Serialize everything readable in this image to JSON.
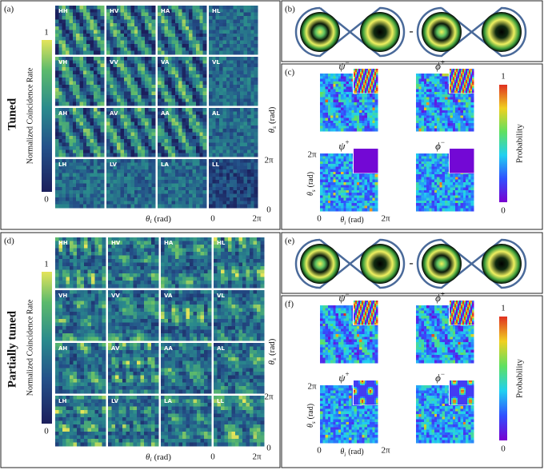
{
  "sections": [
    {
      "row_label": "Tuned",
      "coincidence": {
        "panel": "(a)",
        "colorbar_label": "Normalized Coincidence Rate",
        "colorbar_max": "1",
        "colorbar_min": "0",
        "tiles": [
          "HH",
          "HV",
          "HA",
          "HL",
          "VH",
          "VV",
          "VA",
          "VL",
          "AH",
          "AV",
          "AA",
          "AL",
          "LH",
          "LV",
          "LA",
          "LL"
        ],
        "y_axis": {
          "symbol": "θ",
          "sub": "s",
          "unit": "(rad)",
          "tick_max": "2π",
          "tick_min": "0"
        },
        "x_axis": {
          "symbol": "θ",
          "sub": "i",
          "unit": "(rad)",
          "tick_max": "2π",
          "tick_min": "0"
        }
      },
      "modes": {
        "panel": "(b)",
        "operator": "-"
      },
      "states": {
        "panel": "(c)",
        "maps": [
          {
            "symbol": "ψ",
            "sup": "−"
          },
          {
            "symbol": "ϕ",
            "sup": "+"
          },
          {
            "symbol": "ψ",
            "sup": "+"
          },
          {
            "symbol": "ϕ",
            "sup": "−"
          }
        ],
        "colorbar_label": "Probability",
        "colorbar_max": "1",
        "colorbar_min": "0",
        "y_axis": {
          "symbol": "θ",
          "sub": "s",
          "unit": "(rad)",
          "tick_max": "2π"
        },
        "x_axis": {
          "symbol": "θ",
          "sub": "i",
          "unit": "(rad)",
          "tick_max": "2π",
          "tick_min": "0"
        }
      }
    },
    {
      "row_label": "Partially tuned",
      "coincidence": {
        "panel": "(d)",
        "colorbar_label": "Normalized Coincidence Rate",
        "colorbar_max": "1",
        "colorbar_min": "0",
        "tiles": [
          "HH",
          "HV",
          "HA",
          "HL",
          "VH",
          "VV",
          "VA",
          "VL",
          "AH",
          "AV",
          "AA",
          "AL",
          "LH",
          "LV",
          "LA",
          "LL"
        ],
        "y_axis": {
          "symbol": "θ",
          "sub": "s",
          "unit": "(rad)",
          "tick_max": "2π",
          "tick_min": "0"
        },
        "x_axis": {
          "symbol": "θ",
          "sub": "i",
          "unit": "(rad)",
          "tick_max": "2π",
          "tick_min": "0"
        }
      },
      "modes": {
        "panel": "(e)",
        "operator": "-"
      },
      "states": {
        "panel": "(f)",
        "maps": [
          {
            "symbol": "ψ",
            "sup": "−"
          },
          {
            "symbol": "ϕ",
            "sup": "+"
          },
          {
            "symbol": "ψ",
            "sup": "+"
          },
          {
            "symbol": "ϕ",
            "sup": "−"
          }
        ],
        "colorbar_label": "Probability",
        "colorbar_max": "1",
        "colorbar_min": "0",
        "y_axis": {
          "symbol": "θ",
          "sub": "s",
          "unit": "(rad)",
          "tick_max": "2π"
        },
        "x_axis": {
          "symbol": "θ",
          "sub": "i",
          "unit": "(rad)",
          "tick_max": "2π",
          "tick_min": "0"
        }
      }
    }
  ]
}
